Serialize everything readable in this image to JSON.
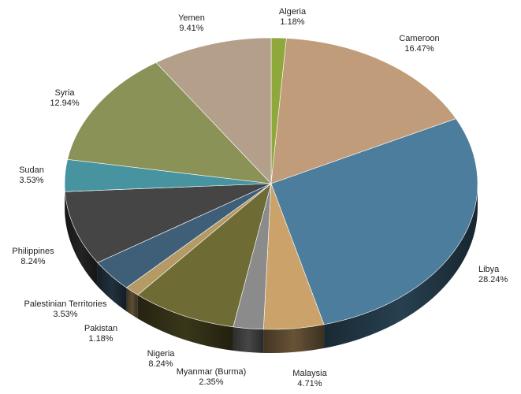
{
  "chart_data": {
    "type": "pie",
    "style": "3d",
    "title": "",
    "slices": [
      {
        "label": "Algeria",
        "value": 1.18,
        "pct": "1.18%",
        "color": "#8fa83c"
      },
      {
        "label": "Cameroon",
        "value": 16.47,
        "pct": "16.47%",
        "color": "#c19c7a"
      },
      {
        "label": "Libya",
        "value": 28.24,
        "pct": "28.24%",
        "color": "#4d7d9d"
      },
      {
        "label": "Malaysia",
        "value": 4.71,
        "pct": "4.71%",
        "color": "#cba26a"
      },
      {
        "label": "Myanmar (Burma)",
        "value": 2.35,
        "pct": "2.35%",
        "color": "#8b8b8b"
      },
      {
        "label": "Nigeria",
        "value": 8.24,
        "pct": "8.24%",
        "color": "#6f6b34"
      },
      {
        "label": "Pakistan",
        "value": 1.18,
        "pct": "1.18%",
        "color": "#b59a66"
      },
      {
        "label": "Palestinian Territories",
        "value": 3.53,
        "pct": "3.53%",
        "color": "#3f5f78"
      },
      {
        "label": "Philippines",
        "value": 8.24,
        "pct": "8.24%",
        "color": "#454545"
      },
      {
        "label": "Sudan",
        "value": 3.53,
        "pct": "3.53%",
        "color": "#4893a0"
      },
      {
        "label": "Syria",
        "value": 12.94,
        "pct": "12.94%",
        "color": "#8a9257"
      },
      {
        "label": "Yemen",
        "value": 9.41,
        "pct": "9.41%",
        "color": "#b4a08a"
      }
    ]
  }
}
